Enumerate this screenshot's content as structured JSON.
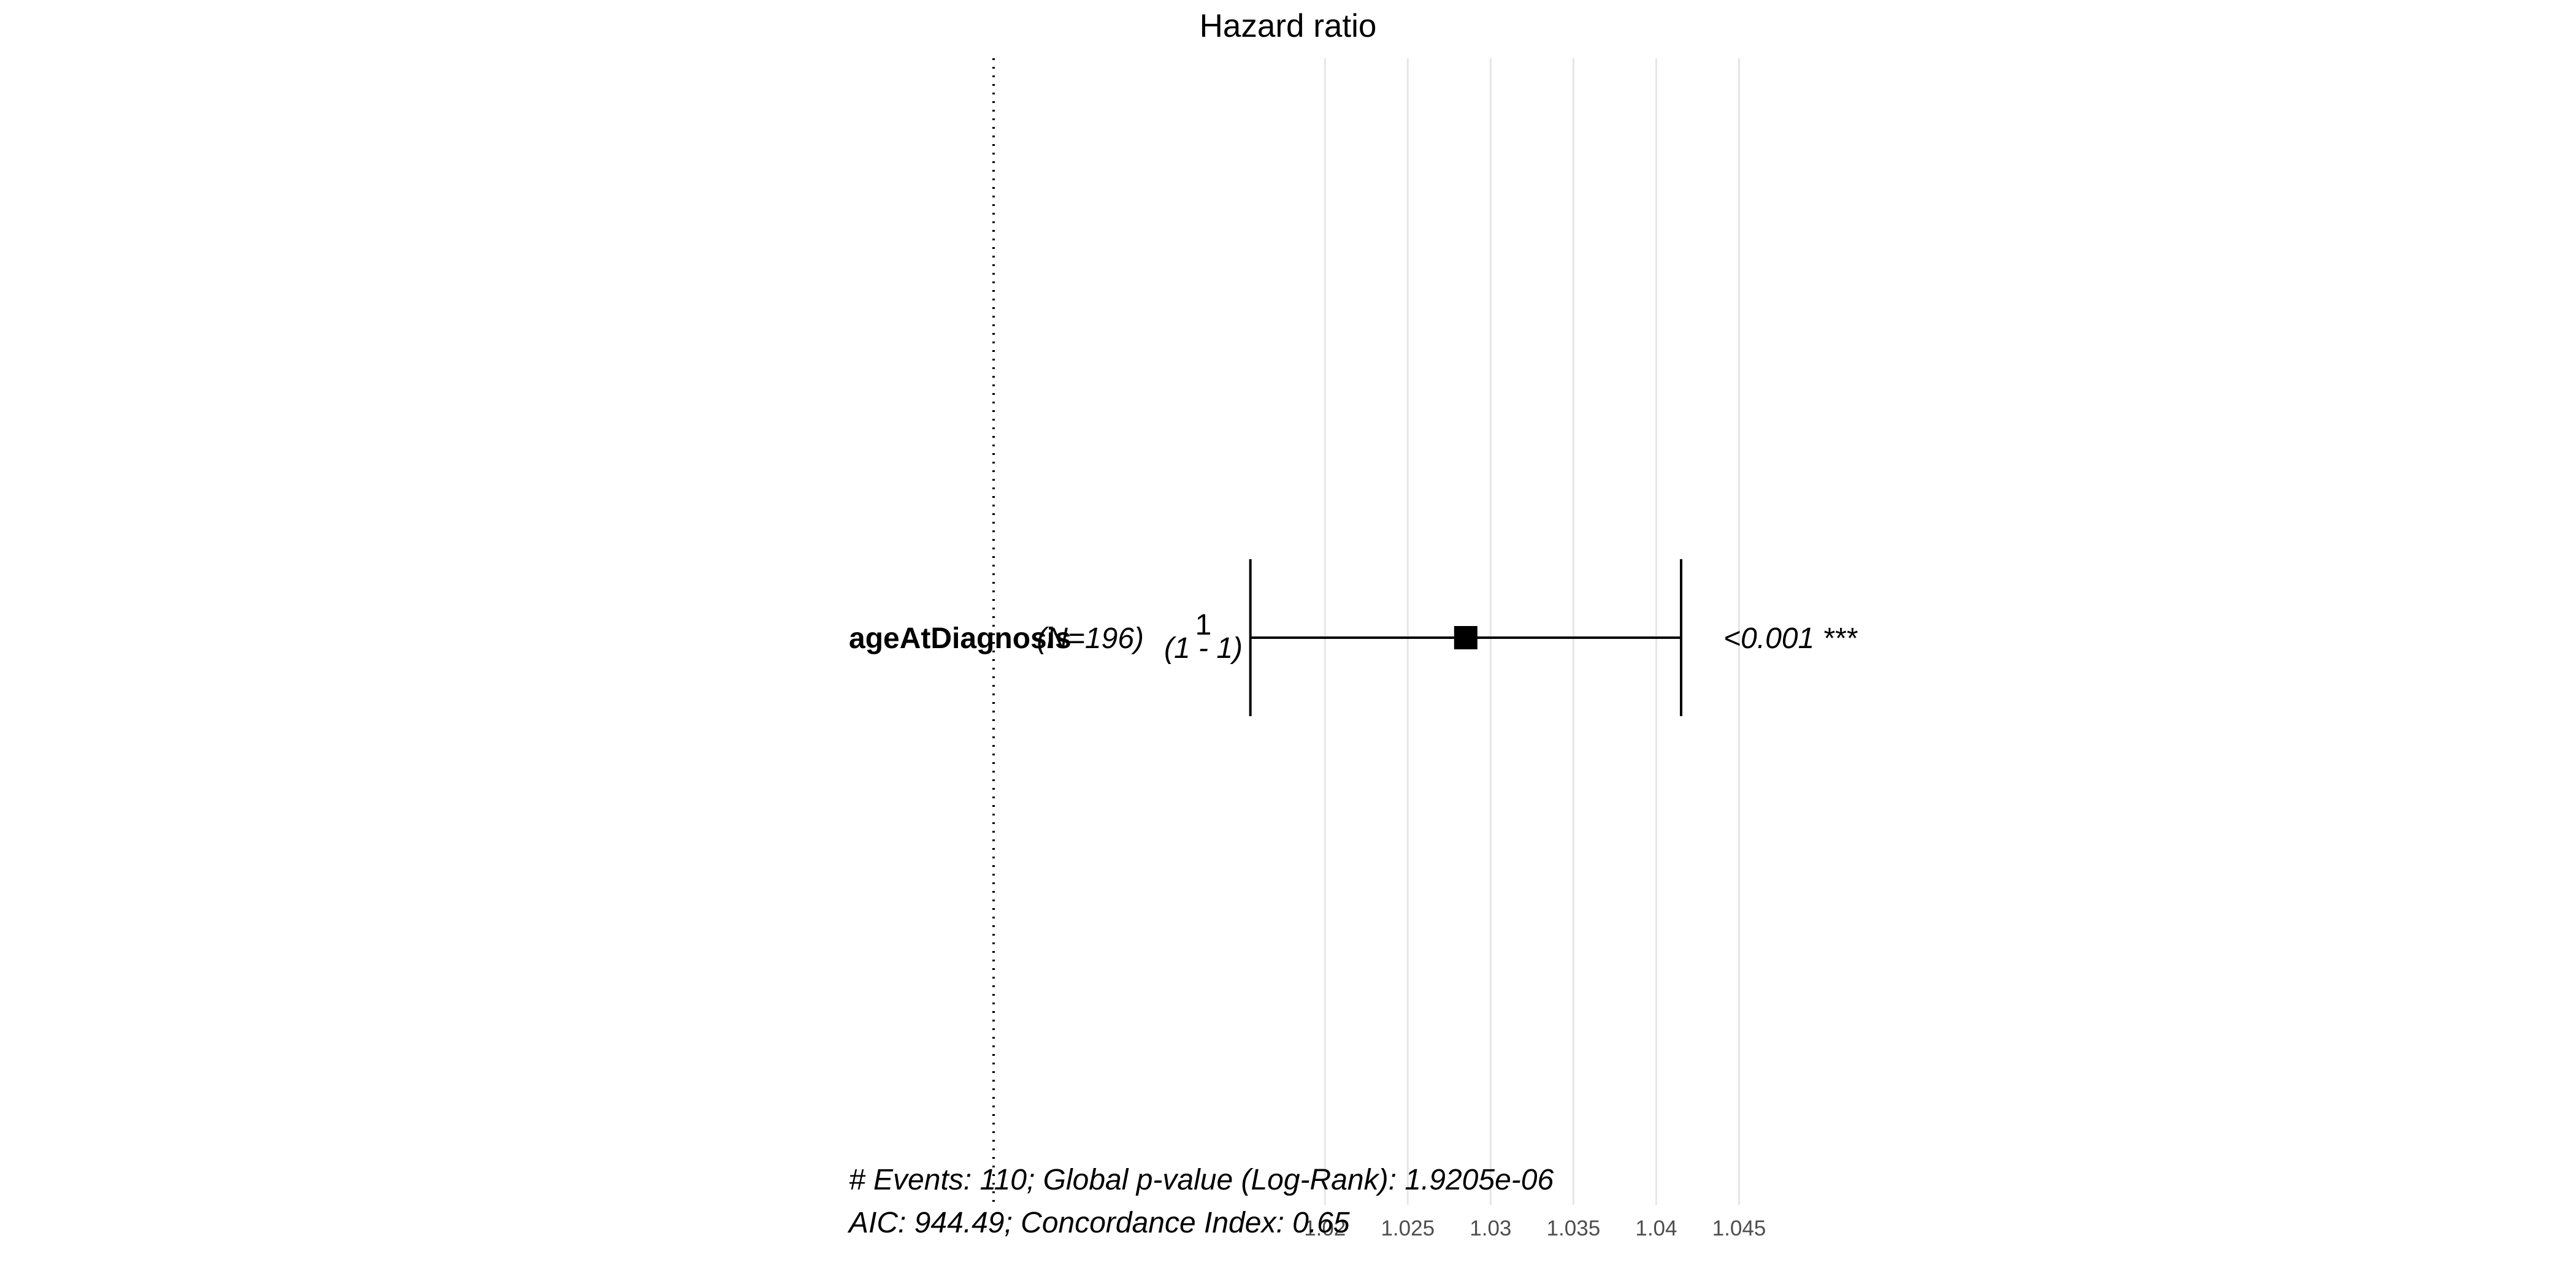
{
  "chart_data": {
    "type": "forest",
    "title": "Hazard ratio",
    "xticks": [
      1.02,
      1.025,
      1.03,
      1.035,
      1.04,
      1.045
    ],
    "xtick_labels": [
      "1.02",
      "1.025",
      "1.03",
      "1.035",
      "1.04",
      "1.045"
    ],
    "xlim": [
      1.0,
      1.0465
    ],
    "reference_line": 1,
    "grid": "vertical",
    "rows": [
      {
        "variable": "ageAtDiagnosis",
        "n_label": "(N=196)",
        "hr_label": "1",
        "ci_label": "(1 - 1)",
        "hr": 1.0285,
        "ci_low": 1.0155,
        "ci_high": 1.0415,
        "p_label": "<0.001 ***"
      }
    ]
  },
  "footer": {
    "line1": "# Events: 110; Global p-value (Log-Rank): 1.9205e-06",
    "line2": "AIC: 944.49; Concordance Index: 0.65"
  },
  "colors": {
    "grid": "#e6e6e6",
    "marker": "#000000",
    "text": "#000000",
    "tick": "#4d4d4d"
  }
}
